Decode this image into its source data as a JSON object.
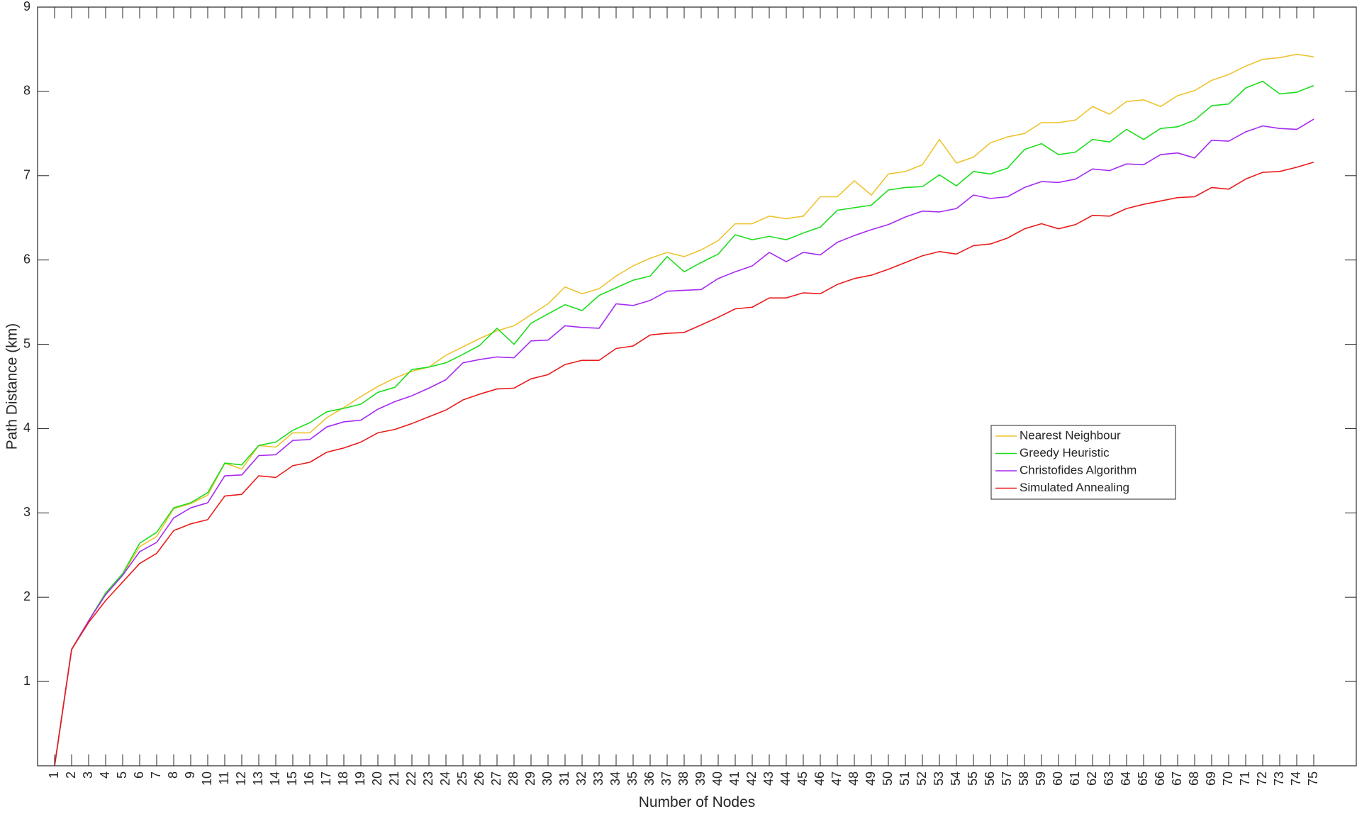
{
  "chart_data": {
    "type": "line",
    "title": "",
    "xlabel": "Number of Nodes",
    "ylabel": "Path Distance (km)",
    "xlim": [
      0,
      77.5
    ],
    "ylim": [
      0,
      9
    ],
    "yticks": [
      1,
      2,
      3,
      4,
      5,
      6,
      7,
      8,
      9
    ],
    "x": [
      1,
      2,
      3,
      4,
      5,
      6,
      7,
      8,
      9,
      10,
      11,
      12,
      13,
      14,
      15,
      16,
      17,
      18,
      19,
      20,
      21,
      22,
      23,
      24,
      25,
      26,
      27,
      28,
      29,
      30,
      31,
      32,
      33,
      34,
      35,
      36,
      37,
      38,
      39,
      40,
      41,
      42,
      43,
      44,
      45,
      46,
      47,
      48,
      49,
      50,
      51,
      52,
      53,
      54,
      55,
      56,
      57,
      58,
      59,
      60,
      61,
      62,
      63,
      64,
      65,
      66,
      67,
      68,
      69,
      70,
      71,
      72,
      73,
      74,
      75
    ],
    "grid": false,
    "legend_position": "right-middle",
    "series": [
      {
        "name": "Nearest Neighbour",
        "color": "#EDC431",
        "values": [
          0,
          1.38,
          1.72,
          2.05,
          2.27,
          2.6,
          2.72,
          3.05,
          3.11,
          3.21,
          3.59,
          3.52,
          3.8,
          3.78,
          3.95,
          3.95,
          4.13,
          4.25,
          4.38,
          4.5,
          4.6,
          4.68,
          4.73,
          4.87,
          4.97,
          5.07,
          5.16,
          5.22,
          5.35,
          5.48,
          5.68,
          5.6,
          5.66,
          5.81,
          5.93,
          6.02,
          6.09,
          6.04,
          6.12,
          6.23,
          6.43,
          6.43,
          6.52,
          6.49,
          6.52,
          6.75,
          6.75,
          6.94,
          6.77,
          7.02,
          7.05,
          7.13,
          7.43,
          7.15,
          7.22,
          7.39,
          7.46,
          7.5,
          7.63,
          7.63,
          7.66,
          7.82,
          7.73,
          7.88,
          7.9,
          7.82,
          7.95,
          8.01,
          8.13,
          8.2,
          8.3,
          8.38,
          8.4,
          8.44,
          8.41
        ]
      },
      {
        "name": "Greedy Heuristic",
        "color": "#1EDD1E",
        "values": [
          0,
          1.38,
          1.72,
          2.05,
          2.28,
          2.64,
          2.77,
          3.06,
          3.12,
          3.24,
          3.59,
          3.57,
          3.8,
          3.84,
          3.98,
          4.07,
          4.2,
          4.24,
          4.29,
          4.43,
          4.49,
          4.7,
          4.73,
          4.78,
          4.88,
          4.99,
          5.19,
          5.0,
          5.25,
          5.36,
          5.47,
          5.4,
          5.58,
          5.67,
          5.76,
          5.81,
          6.04,
          5.86,
          5.97,
          6.07,
          6.3,
          6.24,
          6.28,
          6.24,
          6.32,
          6.39,
          6.59,
          6.62,
          6.65,
          6.83,
          6.86,
          6.87,
          7.01,
          6.88,
          7.05,
          7.02,
          7.09,
          7.31,
          7.38,
          7.25,
          7.28,
          7.43,
          7.4,
          7.55,
          7.43,
          7.56,
          7.58,
          7.66,
          7.83,
          7.85,
          8.04,
          8.12,
          7.97,
          7.99,
          8.07
        ]
      },
      {
        "name": "Christofides Algorithm",
        "color": "#A52AF2",
        "values": [
          0,
          1.38,
          1.72,
          2.03,
          2.26,
          2.54,
          2.65,
          2.94,
          3.06,
          3.12,
          3.44,
          3.45,
          3.68,
          3.69,
          3.86,
          3.87,
          4.02,
          4.08,
          4.1,
          4.23,
          4.32,
          4.39,
          4.48,
          4.58,
          4.78,
          4.82,
          4.85,
          4.84,
          5.04,
          5.05,
          5.22,
          5.2,
          5.19,
          5.48,
          5.46,
          5.52,
          5.63,
          5.64,
          5.65,
          5.78,
          5.86,
          5.93,
          6.09,
          5.98,
          6.09,
          6.06,
          6.21,
          6.29,
          6.36,
          6.42,
          6.51,
          6.58,
          6.57,
          6.61,
          6.77,
          6.73,
          6.75,
          6.86,
          6.93,
          6.92,
          6.96,
          7.08,
          7.06,
          7.14,
          7.13,
          7.25,
          7.27,
          7.21,
          7.42,
          7.41,
          7.52,
          7.59,
          7.56,
          7.55,
          7.67
        ]
      },
      {
        "name": "Simulated Annealing",
        "color": "#EA1B1B",
        "values": [
          0,
          1.38,
          1.7,
          1.96,
          2.18,
          2.4,
          2.52,
          2.79,
          2.87,
          2.92,
          3.2,
          3.22,
          3.44,
          3.42,
          3.56,
          3.6,
          3.72,
          3.77,
          3.84,
          3.95,
          3.99,
          4.06,
          4.14,
          4.22,
          4.34,
          4.41,
          4.47,
          4.48,
          4.59,
          4.64,
          4.76,
          4.81,
          4.81,
          4.95,
          4.98,
          5.11,
          5.13,
          5.14,
          5.23,
          5.32,
          5.42,
          5.44,
          5.55,
          5.55,
          5.61,
          5.6,
          5.71,
          5.78,
          5.82,
          5.89,
          5.97,
          6.05,
          6.1,
          6.07,
          6.17,
          6.19,
          6.26,
          6.37,
          6.43,
          6.37,
          6.42,
          6.53,
          6.52,
          6.61,
          6.66,
          6.7,
          6.74,
          6.75,
          6.86,
          6.84,
          6.96,
          7.04,
          7.05,
          7.1,
          7.16
        ]
      }
    ]
  }
}
